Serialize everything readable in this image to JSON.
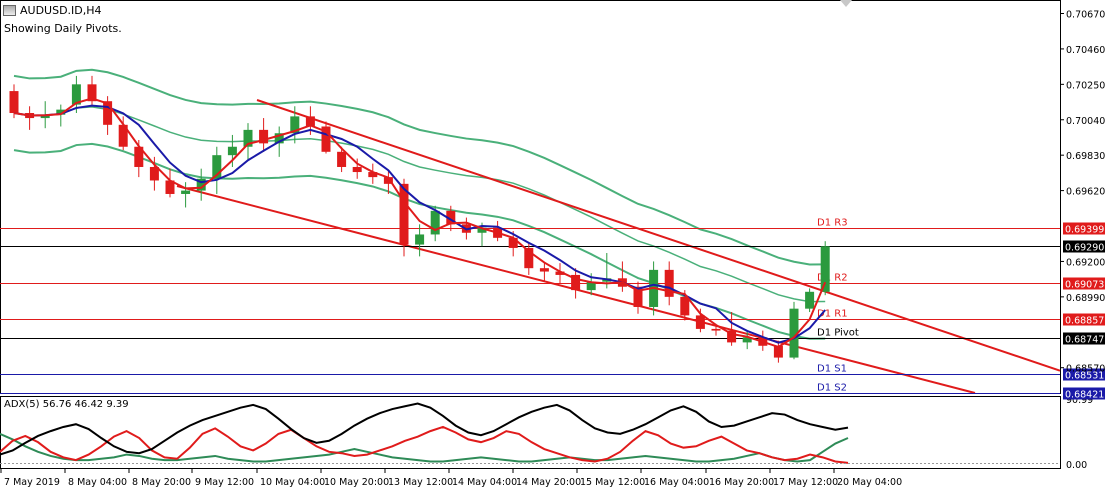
{
  "window": {
    "title": "AUDUSD.ID,H4",
    "subtitle": "Showing Daily Pivots."
  },
  "colors": {
    "bull": "#2b9a3e",
    "bear": "#e01b1b",
    "band": "#4ab07a",
    "ma_fast": "#e01b1b",
    "ma_slow": "#1a1aa8",
    "pivot_line": "#000000",
    "resistance": "#e01b1b",
    "support": "#1a1aa8",
    "adx_main": "#000000",
    "adx_plus": "#2e8b57",
    "adx_minus": "#e01b1b"
  },
  "price_axis": {
    "labels": [
      "0.70670",
      "0.70460",
      "0.70250",
      "0.70040",
      "0.69830",
      "0.69620",
      "0.69200",
      "0.68990",
      "0.68570"
    ]
  },
  "pivots": [
    {
      "name": "D1 R3",
      "price": "0.69399",
      "value": 0.69399,
      "kind": "resistance"
    },
    {
      "name": "D1 R2",
      "price": "0.69073",
      "value": 0.69073,
      "kind": "resistance"
    },
    {
      "name": "D1 R1",
      "price": "0.68857",
      "value": 0.68857,
      "kind": "resistance"
    },
    {
      "name": "D1 Pivot",
      "price": "0.68747",
      "value": 0.68747,
      "kind": "pivot"
    },
    {
      "name": "D1 S1",
      "price": "0.68531",
      "value": 0.68531,
      "kind": "support"
    },
    {
      "name": "D1 S2",
      "price": "0.68421",
      "value": 0.68421,
      "kind": "support"
    }
  ],
  "current_price": {
    "label": "0.69290",
    "value": 0.6929
  },
  "time_axis": {
    "labels": [
      "7 May 2019",
      "8 May 04:00",
      "8 May 20:00",
      "9 May 12:00",
      "10 May 04:00",
      "10 May 20:00",
      "13 May 12:00",
      "14 May 04:00",
      "14 May 20:00",
      "15 May 12:00",
      "16 May 04:00",
      "16 May 20:00",
      "17 May 12:00",
      "20 May 04:00"
    ]
  },
  "adx": {
    "label": "ADX(5) 56.76 46.42 9.39",
    "axis_labels": [
      "90.99",
      "0.00"
    ]
  },
  "chart_data": {
    "type": "candlestick",
    "symbol": "AUDUSD.ID",
    "timeframe": "H4",
    "ylim": [
      0.6842,
      0.7075
    ],
    "candles": [
      [
        0.7021,
        0.7025,
        0.7005,
        0.7008
      ],
      [
        0.7008,
        0.7012,
        0.6998,
        0.7005
      ],
      [
        0.7005,
        0.7015,
        0.6999,
        0.7007
      ],
      [
        0.7007,
        0.7013,
        0.7,
        0.701
      ],
      [
        0.7013,
        0.703,
        0.7008,
        0.7025
      ],
      [
        0.7025,
        0.703,
        0.7012,
        0.7015
      ],
      [
        0.7015,
        0.7018,
        0.6995,
        0.7001
      ],
      [
        0.7001,
        0.7006,
        0.6986,
        0.6988
      ],
      [
        0.6988,
        0.6992,
        0.697,
        0.6976
      ],
      [
        0.6976,
        0.6982,
        0.6962,
        0.6968
      ],
      [
        0.6968,
        0.6975,
        0.6958,
        0.696
      ],
      [
        0.696,
        0.6967,
        0.6952,
        0.6962
      ],
      [
        0.6962,
        0.6975,
        0.6956,
        0.6969
      ],
      [
        0.6969,
        0.6988,
        0.696,
        0.6983
      ],
      [
        0.6983,
        0.6995,
        0.6976,
        0.6988
      ],
      [
        0.6988,
        0.7002,
        0.698,
        0.6998
      ],
      [
        0.6998,
        0.7005,
        0.6985,
        0.699
      ],
      [
        0.699,
        0.7,
        0.6982,
        0.6996
      ],
      [
        0.6996,
        0.7012,
        0.699,
        0.7006
      ],
      [
        0.7006,
        0.7012,
        0.6995,
        0.7
      ],
      [
        0.7,
        0.7003,
        0.6984,
        0.6985
      ],
      [
        0.6985,
        0.6988,
        0.6973,
        0.6976
      ],
      [
        0.6976,
        0.6981,
        0.6969,
        0.6973
      ],
      [
        0.6973,
        0.6978,
        0.6966,
        0.697
      ],
      [
        0.697,
        0.6974,
        0.696,
        0.6966
      ],
      [
        0.6966,
        0.6969,
        0.6923,
        0.693
      ],
      [
        0.693,
        0.6942,
        0.6923,
        0.6936
      ],
      [
        0.6936,
        0.6953,
        0.6932,
        0.695
      ],
      [
        0.695,
        0.6953,
        0.6938,
        0.6942
      ],
      [
        0.6942,
        0.6946,
        0.6933,
        0.6937
      ],
      [
        0.6937,
        0.6943,
        0.6929,
        0.694
      ],
      [
        0.694,
        0.6944,
        0.6932,
        0.6934
      ],
      [
        0.6934,
        0.6938,
        0.6923,
        0.6928
      ],
      [
        0.6928,
        0.6931,
        0.6912,
        0.6916
      ],
      [
        0.6916,
        0.6919,
        0.6908,
        0.6914
      ],
      [
        0.6914,
        0.6919,
        0.6907,
        0.6912
      ],
      [
        0.6912,
        0.6916,
        0.6898,
        0.6903
      ],
      [
        0.6903,
        0.6913,
        0.69,
        0.6908
      ],
      [
        0.6908,
        0.6925,
        0.6904,
        0.691
      ],
      [
        0.691,
        0.692,
        0.6902,
        0.6905
      ],
      [
        0.6905,
        0.6908,
        0.6889,
        0.6893
      ],
      [
        0.6893,
        0.692,
        0.6888,
        0.6915
      ],
      [
        0.6915,
        0.692,
        0.6894,
        0.6899
      ],
      [
        0.6899,
        0.6903,
        0.6885,
        0.6888
      ],
      [
        0.6888,
        0.6892,
        0.6878,
        0.688
      ],
      [
        0.688,
        0.6883,
        0.6876,
        0.6879
      ],
      [
        0.6879,
        0.689,
        0.687,
        0.6872
      ],
      [
        0.6872,
        0.6879,
        0.6868,
        0.6875
      ],
      [
        0.6875,
        0.6879,
        0.6867,
        0.687
      ],
      [
        0.687,
        0.6873,
        0.686,
        0.6863
      ],
      [
        0.6863,
        0.6896,
        0.6862,
        0.6892
      ],
      [
        0.6892,
        0.6904,
        0.689,
        0.6902
      ],
      [
        0.6902,
        0.6932,
        0.69,
        0.6929
      ]
    ]
  }
}
